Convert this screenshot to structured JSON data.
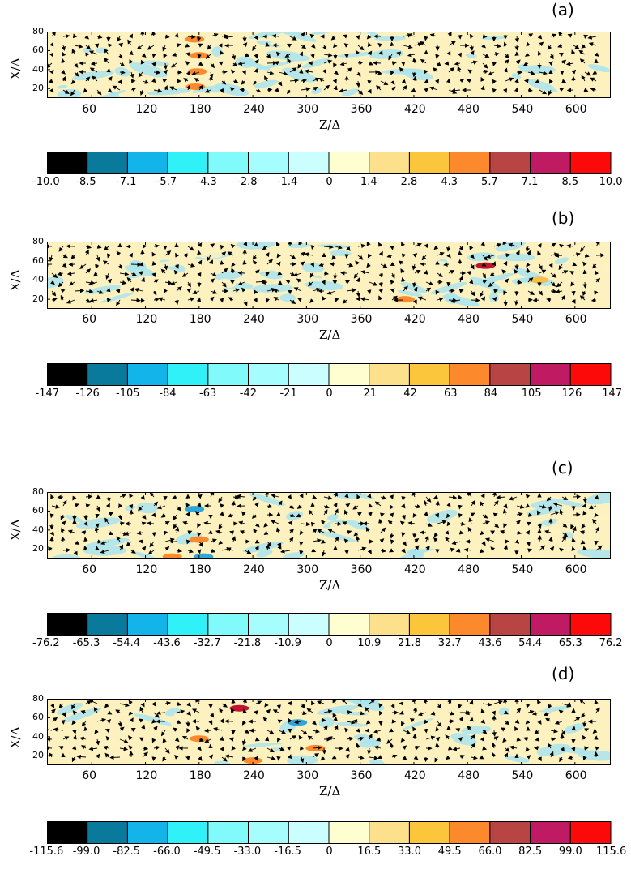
{
  "colorbar_colors": [
    "#000000",
    "#0a7a9c",
    "#12b4ea",
    "#30f0f8",
    "#80fafa",
    "#a6fdfd",
    "#cbfefe",
    "#fffed0",
    "#fde08c",
    "#fcc63c",
    "#fc8a2c",
    "#b84444",
    "#c01a62",
    "#fc0a0a"
  ],
  "field_colors": {
    "neg": "#a9e4ee",
    "pos": "#fdf2bf",
    "strong_pos": "#f3c04c",
    "hot": "#c2142c",
    "strong_neg": "#2ea6d6"
  },
  "chart_data": [
    {
      "type": "heatmap",
      "panel_label": "(a)",
      "xlabel": "Z/Δ",
      "ylabel": "X/Δ",
      "xlim": [
        10,
        640
      ],
      "ylim": [
        10,
        80
      ],
      "xticks": [
        "60",
        "120",
        "180",
        "240",
        "300",
        "360",
        "420",
        "480",
        "540",
        "600"
      ],
      "yticks": [
        "80",
        "60",
        "40",
        "20"
      ],
      "colorbar_ticks": [
        "-10.0",
        "-8.5",
        "-7.1",
        "-5.7",
        "-4.3",
        "-2.8",
        "-1.4",
        "0",
        "1.4",
        "2.8",
        "4.3",
        "5.7",
        "7.1",
        "8.5",
        "10.0"
      ],
      "colorbar_range": [
        -10.0,
        10.0
      ],
      "overlay": "velocity vector field (arrows)",
      "hotspots": [
        {
          "z": 175,
          "x": 72,
          "value": 4.3
        },
        {
          "z": 180,
          "x": 55,
          "value": 4.3
        },
        {
          "z": 178,
          "x": 38,
          "value": 4.3
        },
        {
          "z": 176,
          "x": 22,
          "value": 4.3
        }
      ]
    },
    {
      "type": "heatmap",
      "panel_label": "(b)",
      "xlabel": "Z/Δ",
      "ylabel": "X/Δ",
      "xlim": [
        10,
        640
      ],
      "ylim": [
        10,
        80
      ],
      "xticks": [
        "60",
        "120",
        "180",
        "240",
        "300",
        "360",
        "420",
        "480",
        "540",
        "600"
      ],
      "yticks": [
        "80",
        "60",
        "40",
        "20"
      ],
      "colorbar_ticks": [
        "-147",
        "-126",
        "-105",
        "-84",
        "-63",
        "-42",
        "-21",
        "0",
        "21",
        "42",
        "63",
        "84",
        "105",
        "126",
        "147"
      ],
      "colorbar_range": [
        -147,
        147
      ],
      "overlay": "velocity vector field (arrows)",
      "hotspots": [
        {
          "z": 500,
          "x": 55,
          "value": 126
        },
        {
          "z": 410,
          "x": 20,
          "value": 63
        },
        {
          "z": 560,
          "x": 40,
          "value": 42
        }
      ]
    },
    {
      "type": "heatmap",
      "panel_label": "(c)",
      "xlabel": "Z/Δ",
      "ylabel": "X/Δ",
      "xlim": [
        10,
        640
      ],
      "ylim": [
        10,
        80
      ],
      "xticks": [
        "60",
        "120",
        "180",
        "240",
        "300",
        "360",
        "420",
        "480",
        "540",
        "600"
      ],
      "yticks": [
        "80",
        "60",
        "40",
        "20"
      ],
      "colorbar_ticks": [
        "-76.2",
        "-65.3",
        "-54.4",
        "-43.6",
        "-32.7",
        "-21.8",
        "-10.9",
        "0",
        "10.9",
        "21.8",
        "32.7",
        "43.6",
        "54.4",
        "65.3",
        "76.2"
      ],
      "colorbar_range": [
        -76.2,
        76.2
      ],
      "overlay": "velocity vector field (arrows)",
      "hotspots": [
        {
          "z": 180,
          "x": 30,
          "value": 54.4
        },
        {
          "z": 150,
          "x": 12,
          "value": 54.4
        },
        {
          "z": 175,
          "x": 62,
          "value": -43.6
        },
        {
          "z": 185,
          "x": 12,
          "value": -43.6
        }
      ]
    },
    {
      "type": "heatmap",
      "panel_label": "(d)",
      "xlabel": "Z/Δ",
      "ylabel": "X/Δ",
      "xlim": [
        10,
        640
      ],
      "ylim": [
        10,
        80
      ],
      "xticks": [
        "60",
        "120",
        "180",
        "240",
        "300",
        "360",
        "420",
        "480",
        "540",
        "600"
      ],
      "yticks": [
        "80",
        "60",
        "40",
        "20"
      ],
      "colorbar_ticks": [
        "-115.6",
        "-99.0",
        "-82.5",
        "-66.0",
        "-49.5",
        "-33.0",
        "-16.5",
        "0",
        "16.5",
        "33.0",
        "49.5",
        "66.0",
        "82.5",
        "99.0",
        "115.6"
      ],
      "colorbar_range": [
        -115.6,
        115.6
      ],
      "overlay": "velocity vector field (arrows)",
      "hotspots": [
        {
          "z": 225,
          "x": 70,
          "value": 99.0
        },
        {
          "z": 180,
          "x": 38,
          "value": 66.0
        },
        {
          "z": 310,
          "x": 28,
          "value": 66.0
        },
        {
          "z": 240,
          "x": 15,
          "value": 49.5
        },
        {
          "z": 290,
          "x": 55,
          "value": -49.5
        }
      ]
    }
  ]
}
